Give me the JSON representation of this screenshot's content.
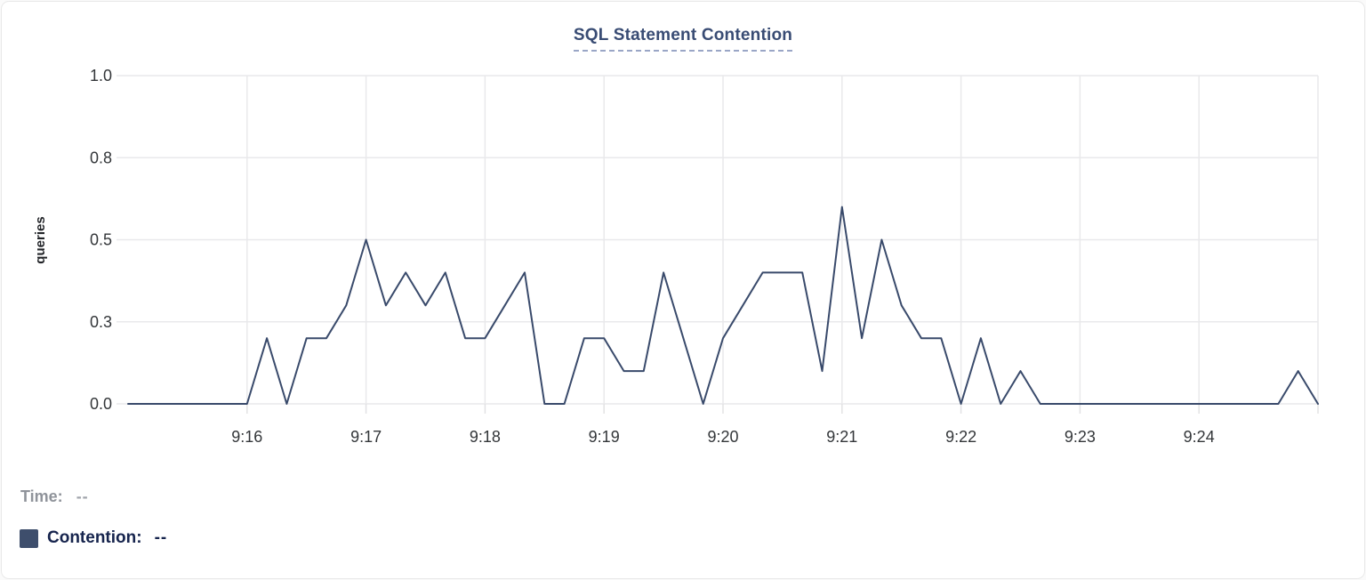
{
  "card": {
    "title": "SQL Statement Contention"
  },
  "legend": {
    "time_label": "Time:",
    "time_value": "--",
    "contention_label": "Contention:",
    "contention_value": "--"
  },
  "colors": {
    "title": "#394c74",
    "title_underline": "#9aa6c6",
    "line": "#394a6b",
    "swatch": "#3e4e6c",
    "contention_text": "#16244d",
    "time_text": "#8f939a",
    "gridline": "#e9e9eb",
    "tick_mark": "#e2e2e4",
    "tick_text": "#333639",
    "axis_label": "#222428",
    "card_bg": "#ffffff",
    "card_border": "#e9e9e9"
  },
  "chart_data": {
    "type": "line",
    "title": "SQL Statement Contention",
    "xlabel": "",
    "ylabel": "queries",
    "series_name": "Contention",
    "line_color": "#394a6b",
    "grid": true,
    "legend_position": "bottom-left",
    "ylim": [
      0,
      1
    ],
    "y_ticks": [
      {
        "value": 0.0,
        "label": "0.0"
      },
      {
        "value": 0.25,
        "label": "0.3"
      },
      {
        "value": 0.5,
        "label": "0.5"
      },
      {
        "value": 0.75,
        "label": "0.8"
      },
      {
        "value": 1.0,
        "label": "1.0"
      }
    ],
    "x_ticks": [
      "9:16",
      "9:17",
      "9:18",
      "9:19",
      "9:20",
      "9:21",
      "9:22",
      "9:23",
      "9:24"
    ],
    "x_start": "9:15:00",
    "x_end": "9:25:00",
    "interval_seconds": 10,
    "values": [
      0,
      0,
      0,
      0,
      0,
      0,
      0,
      0.2,
      0,
      0.2,
      0.2,
      0.3,
      0.5,
      0.3,
      0.4,
      0.3,
      0.4,
      0.2,
      0.2,
      0.3,
      0.4,
      0,
      0,
      0.2,
      0.2,
      0.1,
      0.1,
      0.4,
      0.2,
      0,
      0.2,
      0.3,
      0.4,
      0.4,
      0.4,
      0.1,
      0.6,
      0.2,
      0.5,
      0.3,
      0.2,
      0.2,
      0,
      0.2,
      0,
      0.1,
      0,
      0,
      0,
      0,
      0,
      0,
      0,
      0,
      0,
      0,
      0,
      0,
      0,
      0.1,
      0
    ]
  }
}
